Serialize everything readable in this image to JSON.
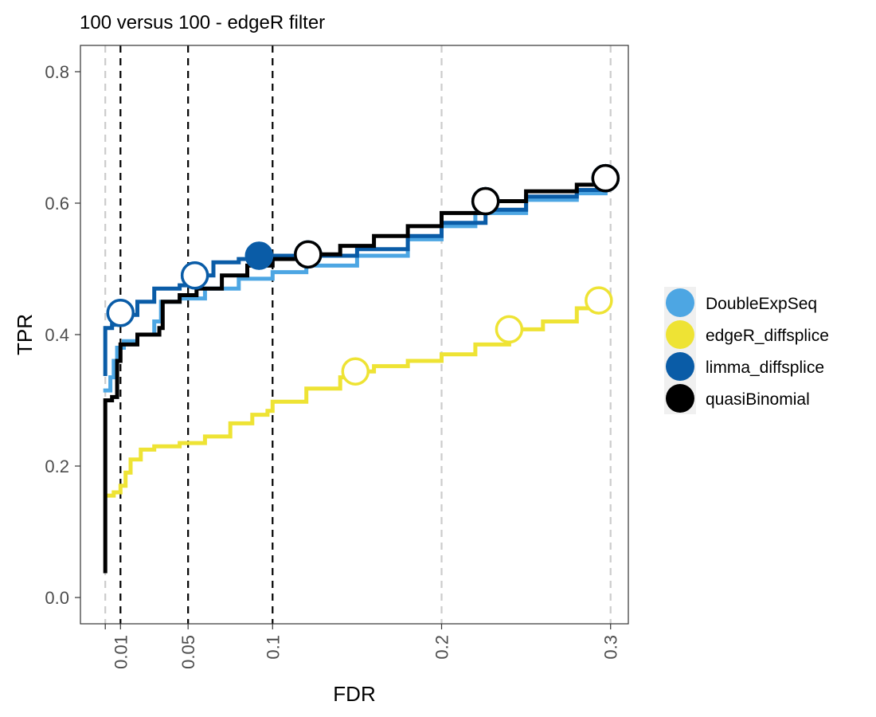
{
  "chart_data": {
    "type": "line",
    "title": "100 versus 100 - edgeR filter",
    "xlabel": "FDR",
    "ylabel": "TPR",
    "xlim": [
      -0.0137,
      0.3105
    ],
    "ylim": [
      -0.04,
      0.84
    ],
    "x_scale": "linear",
    "y_scale": "linear",
    "grid": false,
    "legend_position": "right",
    "x_ticks": [
      {
        "value": 0.001,
        "label": ""
      },
      {
        "value": 0.01,
        "label": "0.01"
      },
      {
        "value": 0.05,
        "label": "0.05"
      },
      {
        "value": 0.1,
        "label": "0.1"
      },
      {
        "value": 0.2,
        "label": "0.2"
      },
      {
        "value": 0.3,
        "label": "0.3"
      }
    ],
    "y_ticks": [
      {
        "value": 0.0,
        "label": "0.0"
      },
      {
        "value": 0.2,
        "label": "0.2"
      },
      {
        "value": 0.4,
        "label": "0.4"
      },
      {
        "value": 0.6,
        "label": "0.6"
      },
      {
        "value": 0.8,
        "label": "0.8"
      }
    ],
    "threshold_lines": [
      {
        "x": 0.001,
        "style": "dashed",
        "color": "#cccccc"
      },
      {
        "x": 0.01,
        "style": "dashed",
        "color": "#000000"
      },
      {
        "x": 0.05,
        "style": "dashed",
        "color": "#000000"
      },
      {
        "x": 0.1,
        "style": "dashed",
        "color": "#000000"
      },
      {
        "x": 0.2,
        "style": "dashed",
        "color": "#cccccc"
      },
      {
        "x": 0.3,
        "style": "dashed",
        "color": "#cccccc"
      }
    ],
    "series": [
      {
        "name": "DoubleExpSeq",
        "color": "#4DA6E3",
        "curve": [
          [
            0.001,
            0.315
          ],
          [
            0.004,
            0.335
          ],
          [
            0.006,
            0.36
          ],
          [
            0.008,
            0.38
          ],
          [
            0.012,
            0.39
          ],
          [
            0.02,
            0.4
          ],
          [
            0.03,
            0.42
          ],
          [
            0.034,
            0.45
          ],
          [
            0.045,
            0.455
          ],
          [
            0.06,
            0.47
          ],
          [
            0.08,
            0.485
          ],
          [
            0.1,
            0.495
          ],
          [
            0.12,
            0.505
          ],
          [
            0.15,
            0.52
          ],
          [
            0.18,
            0.545
          ],
          [
            0.2,
            0.565
          ],
          [
            0.22,
            0.585
          ],
          [
            0.25,
            0.605
          ],
          [
            0.28,
            0.615
          ],
          [
            0.297,
            0.625
          ]
        ],
        "points": [
          {
            "x": 0.01,
            "y": 0.433,
            "filled": false
          },
          {
            "x": 0.054,
            "y": 0.49,
            "filled": false
          },
          {
            "x": 0.092,
            "y": 0.52,
            "filled": true
          },
          {
            "x": 0.121,
            "y": 0.522,
            "filled": false
          },
          {
            "x": 0.226,
            "y": 0.603,
            "filled": false
          },
          {
            "x": 0.297,
            "y": 0.638,
            "filled": false
          }
        ]
      },
      {
        "name": "edgeR_diffsplice",
        "color": "#EEE334",
        "curve": [
          [
            0.003,
            0.155
          ],
          [
            0.006,
            0.16
          ],
          [
            0.01,
            0.17
          ],
          [
            0.013,
            0.19
          ],
          [
            0.016,
            0.21
          ],
          [
            0.022,
            0.225
          ],
          [
            0.03,
            0.23
          ],
          [
            0.045,
            0.235
          ],
          [
            0.06,
            0.245
          ],
          [
            0.075,
            0.265
          ],
          [
            0.088,
            0.278
          ],
          [
            0.097,
            0.284
          ],
          [
            0.1,
            0.298
          ],
          [
            0.12,
            0.318
          ],
          [
            0.14,
            0.335
          ],
          [
            0.149,
            0.344
          ],
          [
            0.16,
            0.352
          ],
          [
            0.18,
            0.36
          ],
          [
            0.2,
            0.37
          ],
          [
            0.22,
            0.385
          ],
          [
            0.24,
            0.408
          ],
          [
            0.26,
            0.42
          ],
          [
            0.28,
            0.44
          ],
          [
            0.293,
            0.452
          ]
        ],
        "points": [
          {
            "x": 0.149,
            "y": 0.344,
            "filled": false
          },
          {
            "x": 0.24,
            "y": 0.408,
            "filled": false
          },
          {
            "x": 0.293,
            "y": 0.452,
            "filled": false
          }
        ]
      },
      {
        "name": "limma_diffsplice",
        "color": "#0A5CA7",
        "curve": [
          [
            0.001,
            0.34
          ],
          [
            0.001,
            0.41
          ],
          [
            0.005,
            0.415
          ],
          [
            0.01,
            0.43
          ],
          [
            0.02,
            0.45
          ],
          [
            0.03,
            0.47
          ],
          [
            0.045,
            0.475
          ],
          [
            0.055,
            0.49
          ],
          [
            0.065,
            0.51
          ],
          [
            0.08,
            0.515
          ],
          [
            0.092,
            0.52
          ],
          [
            0.12,
            0.52
          ],
          [
            0.15,
            0.53
          ],
          [
            0.18,
            0.55
          ],
          [
            0.2,
            0.57
          ],
          [
            0.226,
            0.59
          ],
          [
            0.25,
            0.61
          ],
          [
            0.28,
            0.62
          ],
          [
            0.297,
            0.625
          ]
        ],
        "points": [
          {
            "x": 0.01,
            "y": 0.433,
            "filled": false
          },
          {
            "x": 0.054,
            "y": 0.49,
            "filled": false
          },
          {
            "x": 0.092,
            "y": 0.52,
            "filled": true
          },
          {
            "x": 0.121,
            "y": 0.522,
            "filled": false
          },
          {
            "x": 0.226,
            "y": 0.603,
            "filled": false
          },
          {
            "x": 0.297,
            "y": 0.638,
            "filled": false
          }
        ]
      },
      {
        "name": "quasiBinomial",
        "color": "#000000",
        "curve": [
          [
            0.001,
            0.04
          ],
          [
            0.001,
            0.3
          ],
          [
            0.005,
            0.305
          ],
          [
            0.008,
            0.36
          ],
          [
            0.01,
            0.385
          ],
          [
            0.02,
            0.4
          ],
          [
            0.033,
            0.41
          ],
          [
            0.035,
            0.45
          ],
          [
            0.045,
            0.46
          ],
          [
            0.055,
            0.47
          ],
          [
            0.07,
            0.49
          ],
          [
            0.085,
            0.505
          ],
          [
            0.1,
            0.515
          ],
          [
            0.121,
            0.522
          ],
          [
            0.14,
            0.535
          ],
          [
            0.16,
            0.55
          ],
          [
            0.18,
            0.565
          ],
          [
            0.2,
            0.585
          ],
          [
            0.226,
            0.603
          ],
          [
            0.25,
            0.618
          ],
          [
            0.28,
            0.628
          ],
          [
            0.297,
            0.638
          ]
        ],
        "points": [
          {
            "x": 0.121,
            "y": 0.522,
            "filled": false
          },
          {
            "x": 0.226,
            "y": 0.603,
            "filled": false
          },
          {
            "x": 0.297,
            "y": 0.638,
            "filled": false
          }
        ]
      }
    ]
  }
}
